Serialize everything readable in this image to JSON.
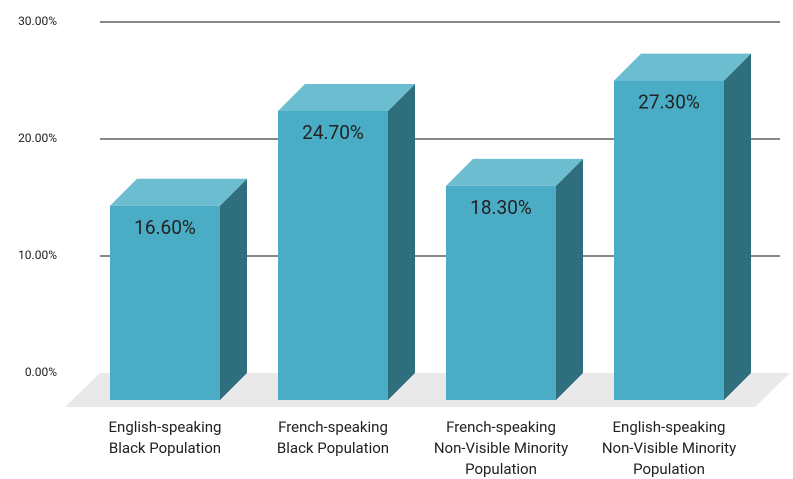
{
  "chart_data": {
    "type": "bar3d",
    "categories": [
      "English-speaking\nBlack Population",
      "French-speaking\nBlack Population",
      "French-speaking\nNon-Visible Minority\nPopulation",
      "English-speaking\nNon-Visible Minority\nPopulation"
    ],
    "values": [
      16.6,
      24.7,
      18.3,
      27.3
    ],
    "value_labels": [
      "16.60%",
      "24.70%",
      "18.30%",
      "27.30%"
    ],
    "color": "#4aacc5",
    "ylim": [
      0,
      30
    ],
    "yticks": [
      {
        "value": 0,
        "label": "0.00%"
      },
      {
        "value": 10,
        "label": "10.00%"
      },
      {
        "value": 20,
        "label": "20.00%"
      },
      {
        "value": 30,
        "label": "30.00%"
      }
    ],
    "grid": true
  }
}
